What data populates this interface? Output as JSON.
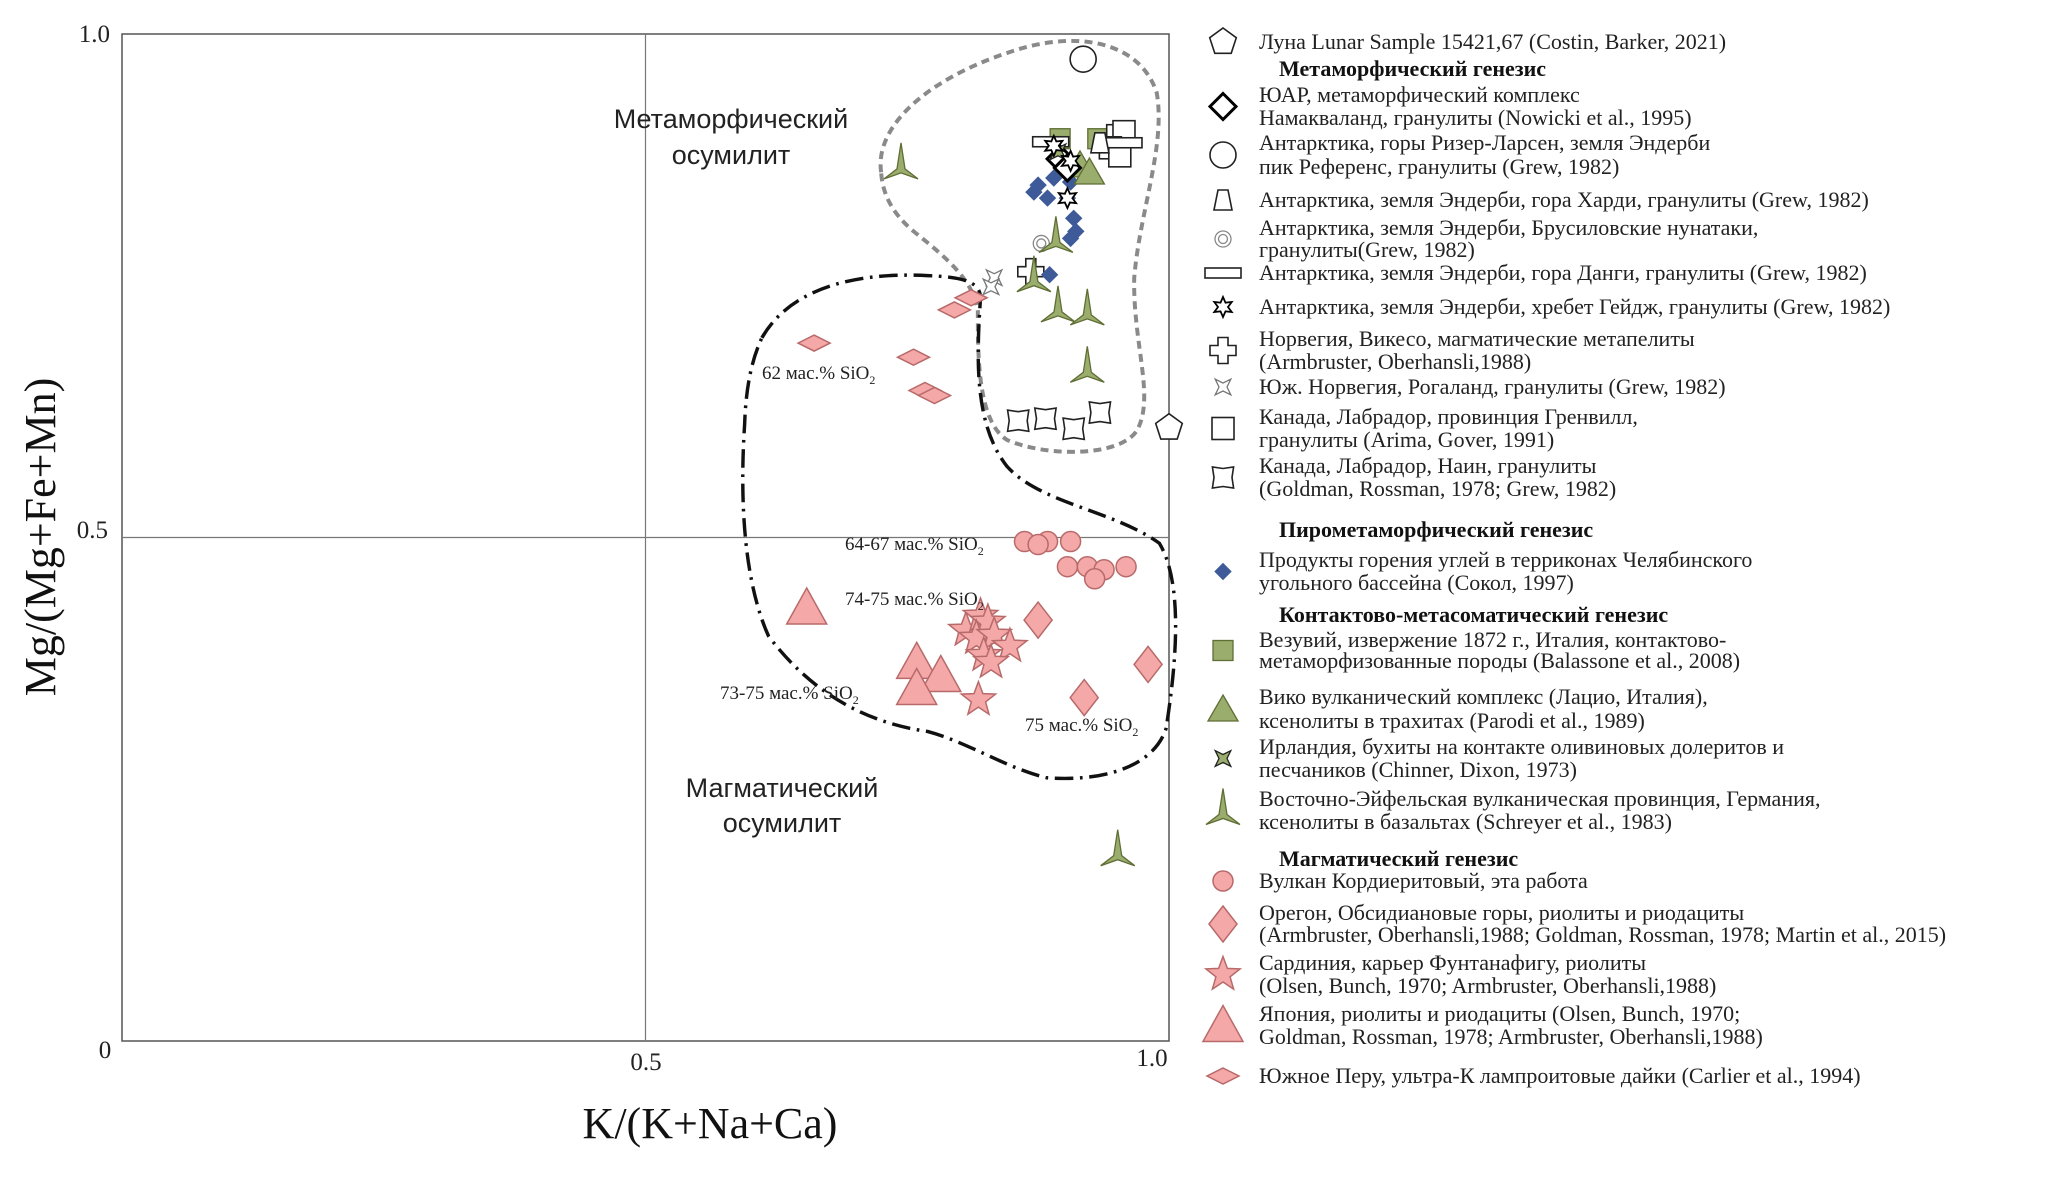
{
  "chart_data": {
    "type": "scatter",
    "xlabel": "K/(K+Na+Ca)",
    "ylabel": "Mg/(Mg+Fe+Mn)",
    "xlim": [
      0,
      1.0
    ],
    "ylim": [
      0,
      1.0
    ],
    "origin_tick": "0",
    "x_ticks": [
      "0.5",
      "1.0"
    ],
    "y_ticks": [
      "0.5",
      "1.0"
    ],
    "grid": "lines at 0.5",
    "legend_position": "right",
    "colors": {
      "pink": "#f4a8a8",
      "green": "#9aad6c",
      "blue": "#3e5a98",
      "gray_outline": "#8a8a8a"
    },
    "region_labels": [
      {
        "lines": [
          "Метаморфический",
          "осумилит"
        ],
        "outline": "gray dashed"
      },
      {
        "lines": [
          "Магматический",
          "осумилит"
        ],
        "outline": "black dash-dot"
      }
    ],
    "annotations": [
      {
        "text": "62 мас.% SiO",
        "sub": "2"
      },
      {
        "text": "64-67 мас.% SiO",
        "sub": "2"
      },
      {
        "text": "74-75 мас.% SiO",
        "sub": "2"
      },
      {
        "text": "73-75 мас.% SiO",
        "sub": "2"
      },
      {
        "text": "75 мас.% SiO",
        "sub": "2"
      }
    ],
    "legend": [
      {
        "marker": "pentagon-open",
        "lines": [
          "Луна Lunar Sample 15421,67 (Costin, Barker, 2021)"
        ]
      },
      {
        "header": "Метаморфический генезис"
      },
      {
        "marker": "diamond-open",
        "lines": [
          "ЮАР, метаморфический комплекс",
          "Намакваланд, гранулиты (Nowicki et al., 1995)"
        ]
      },
      {
        "marker": "circle-open",
        "lines": [
          "Антарктика, горы Ризер-Ларсен, земля Эндерби",
          " пик Референс, гранулиты (Grew, 1982)"
        ]
      },
      {
        "marker": "trapezoid-open",
        "lines": [
          "Антарктика, земля Эндерби, гора Харди, гранулиты (Grew, 1982)"
        ]
      },
      {
        "marker": "double-circle",
        "lines": [
          "Антарктика, земля Эндерби, Брусиловские нунатаки,",
          "гранулиты(Grew, 1982)"
        ]
      },
      {
        "marker": "rect-open",
        "lines": [
          "Антарктика, земля Эндерби, гора Данги, гранулиты  (Grew, 1982)"
        ]
      },
      {
        "marker": "star6-open",
        "lines": [
          "Антарктика, земля Эндерби, хребет Гейдж, гранулиты (Grew, 1982)"
        ]
      },
      {
        "marker": "plus-open",
        "lines": [
          "Норвегия, Викесо, магматические метапелиты",
          "(Armbruster, Oberhansli,1988)"
        ]
      },
      {
        "marker": "star4-open",
        "lines": [
          "Юж. Норвегия, Рогаланд, гранулиты (Grew, 1982)"
        ]
      },
      {
        "marker": "square-open",
        "lines": [
          "Канада, Лабрадор, провинция Гренвилл,",
          "гранулиты (Arima, Gover, 1991)"
        ]
      },
      {
        "marker": "cross-open",
        "lines": [
          "Канада, Лабрадор, Наин, гранулиты",
          "(Goldman, Rossman, 1978; Grew, 1982)"
        ]
      },
      {
        "header": "Пирометаморфический генезис"
      },
      {
        "marker": "diamond-blue",
        "lines": [
          "Продукты горения углей в терриконах Челябинского",
          "угольного бассейна (Сокол, 1997)"
        ]
      },
      {
        "header": "Контактово-метасоматический генезис"
      },
      {
        "marker": "square-green",
        "lines": [
          "Везувий, извержение 1872 г., Италия, контактово-",
          "метаморфизованные породы (Balassone et al., 2008)"
        ]
      },
      {
        "marker": "triangle-green",
        "lines": [
          "Вико вулканический комплекс (Лацио, Италия),",
          "ксенолиты в трахитах (Parodi et al., 1989)"
        ]
      },
      {
        "marker": "x-green",
        "lines": [
          "Ирландия, бухиты на контакте  оливиновых долеритов и",
          "песчаников (Chinner, Dixon, 1973)"
        ]
      },
      {
        "marker": "tristar-green",
        "lines": [
          "Восточно-Эйфельская вулканическая провинция, Германия,",
          " ксенолиты в базальтах (Schreyer et al., 1983)"
        ]
      },
      {
        "header": "Магматический генезис"
      },
      {
        "marker": "circle-pink",
        "lines": [
          "Вулкан Кордиеритовый, эта работа"
        ]
      },
      {
        "marker": "diamond-pink",
        "lines": [
          "Орегон, Обсидиановые горы, риолиты и риодациты",
          "(Armbruster, Oberhansli,1988; Goldman, Rossman, 1978; Martin et al., 2015)"
        ]
      },
      {
        "marker": "star-pink",
        "lines": [
          "Сардиния, карьер Фунтанафигу, риолиты",
          "(Olsen, Bunch, 1970; Armbruster, Oberhansli,1988)"
        ]
      },
      {
        "marker": "triangle-pink",
        "lines": [
          "Япония, риолиты и риодациты (Olsen, Bunch, 1970;",
          "Goldman, Rossman, 1978; Armbruster, Oberhansli,1988)"
        ]
      },
      {
        "marker": "flatdiamond-pink",
        "lines": [
          "Южное Перу, ультра-К лампроитовые дайки (Carlier et al., 1994)"
        ]
      }
    ],
    "series": [
      {
        "marker": "pentagon-open",
        "points": [
          [
            1.0,
            0.609
          ]
        ]
      },
      {
        "marker": "circle-open",
        "points": [
          [
            0.918,
            0.975
          ]
        ]
      },
      {
        "marker": "double-circle",
        "points": [
          [
            0.878,
            0.792
          ]
        ]
      },
      {
        "marker": "cross-open",
        "points": [
          [
            0.856,
            0.616
          ],
          [
            0.882,
            0.618
          ],
          [
            0.909,
            0.608
          ],
          [
            0.934,
            0.624
          ]
        ]
      },
      {
        "marker": "plus-open",
        "points": [
          [
            0.868,
            0.764
          ]
        ]
      },
      {
        "marker": "star4-open",
        "points": [
          [
            0.833,
            0.758
          ],
          [
            0.83,
            0.749
          ]
        ]
      },
      {
        "marker": "diamond-blue",
        "points": [
          [
            0.875,
            0.85
          ],
          [
            0.89,
            0.857
          ],
          [
            0.906,
            0.853
          ],
          [
            0.884,
            0.837
          ],
          [
            0.903,
            0.837
          ],
          [
            0.871,
            0.843
          ],
          [
            0.909,
            0.817
          ],
          [
            0.911,
            0.804
          ],
          [
            0.906,
            0.797
          ],
          [
            0.886,
            0.761
          ]
        ]
      },
      {
        "marker": "square-green",
        "points": [
          [
            0.896,
            0.896
          ],
          [
            0.932,
            0.896
          ]
        ]
      },
      {
        "marker": "triangle-green",
        "points": [
          [
            0.915,
            0.87
          ],
          [
            0.924,
            0.863
          ]
        ]
      },
      {
        "marker": "square-open",
        "points": [
          [
            0.951,
            0.899
          ],
          [
            0.957,
            0.903
          ],
          [
            0.944,
            0.887
          ],
          [
            0.953,
            0.879
          ]
        ]
      },
      {
        "marker": "rect-open",
        "points": [
          [
            0.887,
            0.893
          ],
          [
            0.957,
            0.892
          ]
        ]
      },
      {
        "marker": "trapezoid-open",
        "points": [
          [
            0.934,
            0.892
          ]
        ]
      },
      {
        "marker": "diamond-open",
        "points": [
          [
            0.896,
            0.876
          ],
          [
            0.903,
            0.867
          ]
        ]
      },
      {
        "marker": "x-green",
        "points": [
          [
            0.894,
            0.883
          ]
        ]
      },
      {
        "marker": "star6-open",
        "points": [
          [
            0.89,
            0.889
          ],
          [
            0.903,
            0.837
          ],
          [
            0.906,
            0.874
          ]
        ]
      },
      {
        "marker": "tristar-green",
        "points": [
          [
            0.744,
            0.87
          ],
          [
            0.892,
            0.797
          ],
          [
            0.871,
            0.758
          ],
          [
            0.894,
            0.728
          ],
          [
            0.922,
            0.725
          ],
          [
            0.922,
            0.668
          ],
          [
            0.951,
            0.188
          ]
        ]
      },
      {
        "marker": "circle-pink",
        "points": [
          [
            0.862,
            0.496
          ],
          [
            0.884,
            0.496
          ],
          [
            0.906,
            0.496
          ],
          [
            0.875,
            0.493
          ],
          [
            0.903,
            0.471
          ],
          [
            0.922,
            0.471
          ],
          [
            0.938,
            0.468
          ],
          [
            0.929,
            0.459
          ],
          [
            0.959,
            0.471
          ]
        ]
      },
      {
        "marker": "diamond-pink",
        "points": [
          [
            0.875,
            0.418
          ],
          [
            0.98,
            0.374
          ],
          [
            0.919,
            0.341
          ]
        ]
      },
      {
        "marker": "star-pink",
        "points": [
          [
            0.806,
            0.408
          ],
          [
            0.82,
            0.422
          ],
          [
            0.827,
            0.416
          ],
          [
            0.816,
            0.4
          ],
          [
            0.833,
            0.403
          ],
          [
            0.848,
            0.392
          ],
          [
            0.823,
            0.383
          ],
          [
            0.83,
            0.376
          ],
          [
            0.818,
            0.339
          ]
        ]
      },
      {
        "marker": "triangle-pink",
        "points": [
          [
            0.654,
            0.43
          ],
          [
            0.759,
            0.376
          ],
          [
            0.782,
            0.363
          ],
          [
            0.759,
            0.35
          ]
        ]
      },
      {
        "marker": "flatdiamond-pink",
        "points": [
          [
            0.661,
            0.693
          ],
          [
            0.756,
            0.679
          ],
          [
            0.767,
            0.646
          ],
          [
            0.776,
            0.641
          ],
          [
            0.795,
            0.726
          ],
          [
            0.811,
            0.738
          ]
        ]
      }
    ]
  }
}
